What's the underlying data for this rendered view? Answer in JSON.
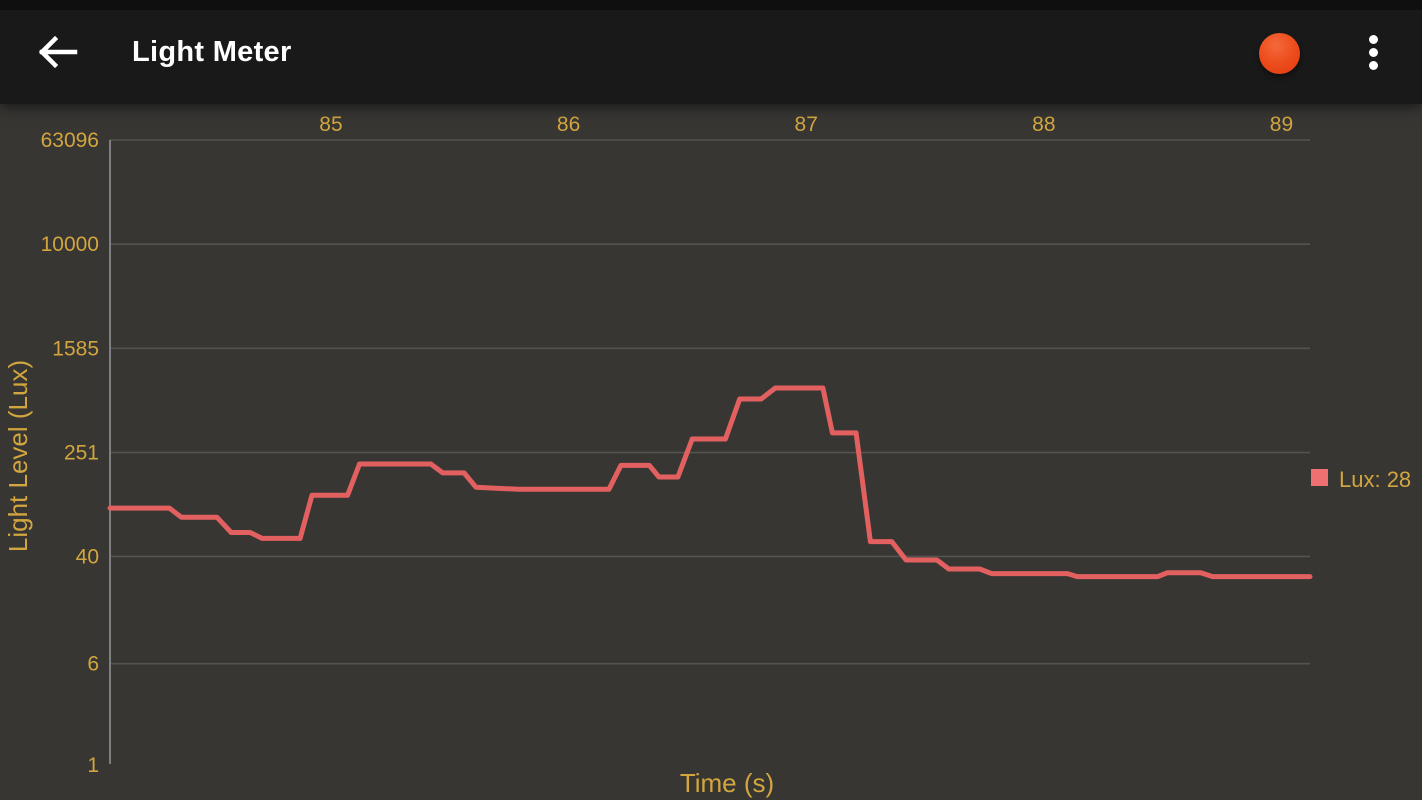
{
  "app_bar": {
    "title": "Light Meter"
  },
  "icons": {
    "back": "arrow-left-icon",
    "record": "record-dot-icon",
    "menu": "vertical-ellipsis-icon"
  },
  "legend": {
    "label": "Lux: 28"
  },
  "theme": {
    "app_bar_bg": "#191919",
    "background": "#373633",
    "accent": "#d2a53f",
    "line": "#e36060",
    "legend_swatch": "#ee7070",
    "grid": "#555350",
    "axis": "#7d7e80",
    "record_red": "#e8431b",
    "title_text": "#ffffff"
  },
  "chart_data": {
    "type": "line",
    "title": "",
    "xlabel": "Time (s)",
    "ylabel": "Light Level (Lux)",
    "y_scale": "log",
    "grid": true,
    "legend_position": "right",
    "x_ticks": [
      85,
      86,
      87,
      88,
      89
    ],
    "y_ticks": [
      63096,
      10000,
      1585,
      251,
      40,
      6,
      1
    ],
    "xlim": [
      84.07,
      89.12
    ],
    "ylim": [
      1,
      63096
    ],
    "series": [
      {
        "name": "Lux",
        "current_value": 28,
        "points": [
          [
            84.07,
            94
          ],
          [
            84.32,
            94
          ],
          [
            84.37,
            80
          ],
          [
            84.52,
            80
          ],
          [
            84.58,
            61
          ],
          [
            84.66,
            61
          ],
          [
            84.71,
            55
          ],
          [
            84.87,
            55
          ],
          [
            84.92,
            118
          ],
          [
            85.07,
            118
          ],
          [
            85.12,
            205
          ],
          [
            85.42,
            205
          ],
          [
            85.47,
            175
          ],
          [
            85.56,
            175
          ],
          [
            85.61,
            136
          ],
          [
            85.79,
            131
          ],
          [
            86.17,
            131
          ],
          [
            86.22,
            200
          ],
          [
            86.34,
            200
          ],
          [
            86.38,
            163
          ],
          [
            86.46,
            163
          ],
          [
            86.52,
            319
          ],
          [
            86.66,
            319
          ],
          [
            86.72,
            647
          ],
          [
            86.81,
            647
          ],
          [
            86.87,
            786
          ],
          [
            87.07,
            786
          ],
          [
            87.11,
            355
          ],
          [
            87.21,
            355
          ],
          [
            87.27,
            52
          ],
          [
            87.36,
            52
          ],
          [
            87.42,
            37.5
          ],
          [
            87.55,
            37.5
          ],
          [
            87.6,
            32
          ],
          [
            87.73,
            32
          ],
          [
            87.78,
            29.5
          ],
          [
            88.1,
            29.5
          ],
          [
            88.14,
            28
          ],
          [
            88.48,
            28
          ],
          [
            88.52,
            30
          ],
          [
            88.66,
            30
          ],
          [
            88.71,
            28
          ],
          [
            89.12,
            28
          ]
        ]
      }
    ]
  }
}
